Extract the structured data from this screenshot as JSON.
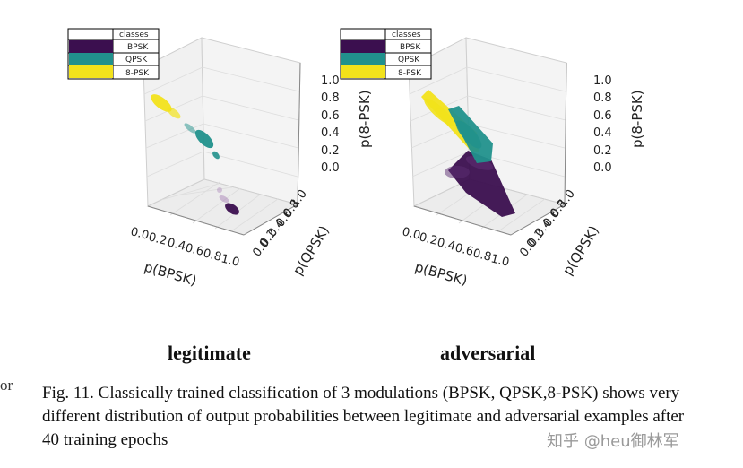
{
  "figure": {
    "panels": [
      {
        "id": "legitimate",
        "label": "legitimate",
        "xlabel": "p(BPSK)",
        "ylabel": "p(QPSK)",
        "zlabel": "p(8-PSK)",
        "x_ticks": [
          "0.0",
          "0.2",
          "0.4",
          "0.6",
          "0.8",
          "1.0"
        ],
        "y_ticks": [
          "0.0",
          "0.2",
          "0.4",
          "0.6",
          "0.8",
          "1.0"
        ],
        "z_ticks": [
          "0.0",
          "0.2",
          "0.4",
          "0.6",
          "0.8",
          "1.0"
        ],
        "legend": {
          "title": "classes",
          "entries": [
            {
              "label": "BPSK",
              "color": "#3b0f4f"
            },
            {
              "label": "QPSK",
              "color": "#21918c"
            },
            {
              "label": "8-PSK",
              "color": "#f2e21b"
            }
          ]
        }
      },
      {
        "id": "adversarial",
        "label": "adversarial",
        "xlabel": "p(BPSK)",
        "ylabel": "p(QPSK)",
        "zlabel": "p(8-PSK)",
        "x_ticks": [
          "0.0",
          "0.2",
          "0.4",
          "0.6",
          "0.8",
          "1.0"
        ],
        "y_ticks": [
          "0.0",
          "0.2",
          "0.4",
          "0.6",
          "0.8",
          "1.0"
        ],
        "z_ticks": [
          "0.0",
          "0.2",
          "0.4",
          "0.6",
          "0.8",
          "1.0"
        ],
        "legend": {
          "title": "classes",
          "entries": [
            {
              "label": "BPSK",
              "color": "#3b0f4f"
            },
            {
              "label": "QPSK",
              "color": "#21918c"
            },
            {
              "label": "8-PSK",
              "color": "#f2e21b"
            }
          ]
        }
      }
    ]
  },
  "caption": "Fig. 11.  Classically trained classification of 3 modulations (BPSK, QPSK,8-PSK) shows very different distribution of output probabilities between legitimate and adversarial examples after 40 training epochs",
  "margin_fragment": "or",
  "watermark": "知乎 @heu御林军"
}
